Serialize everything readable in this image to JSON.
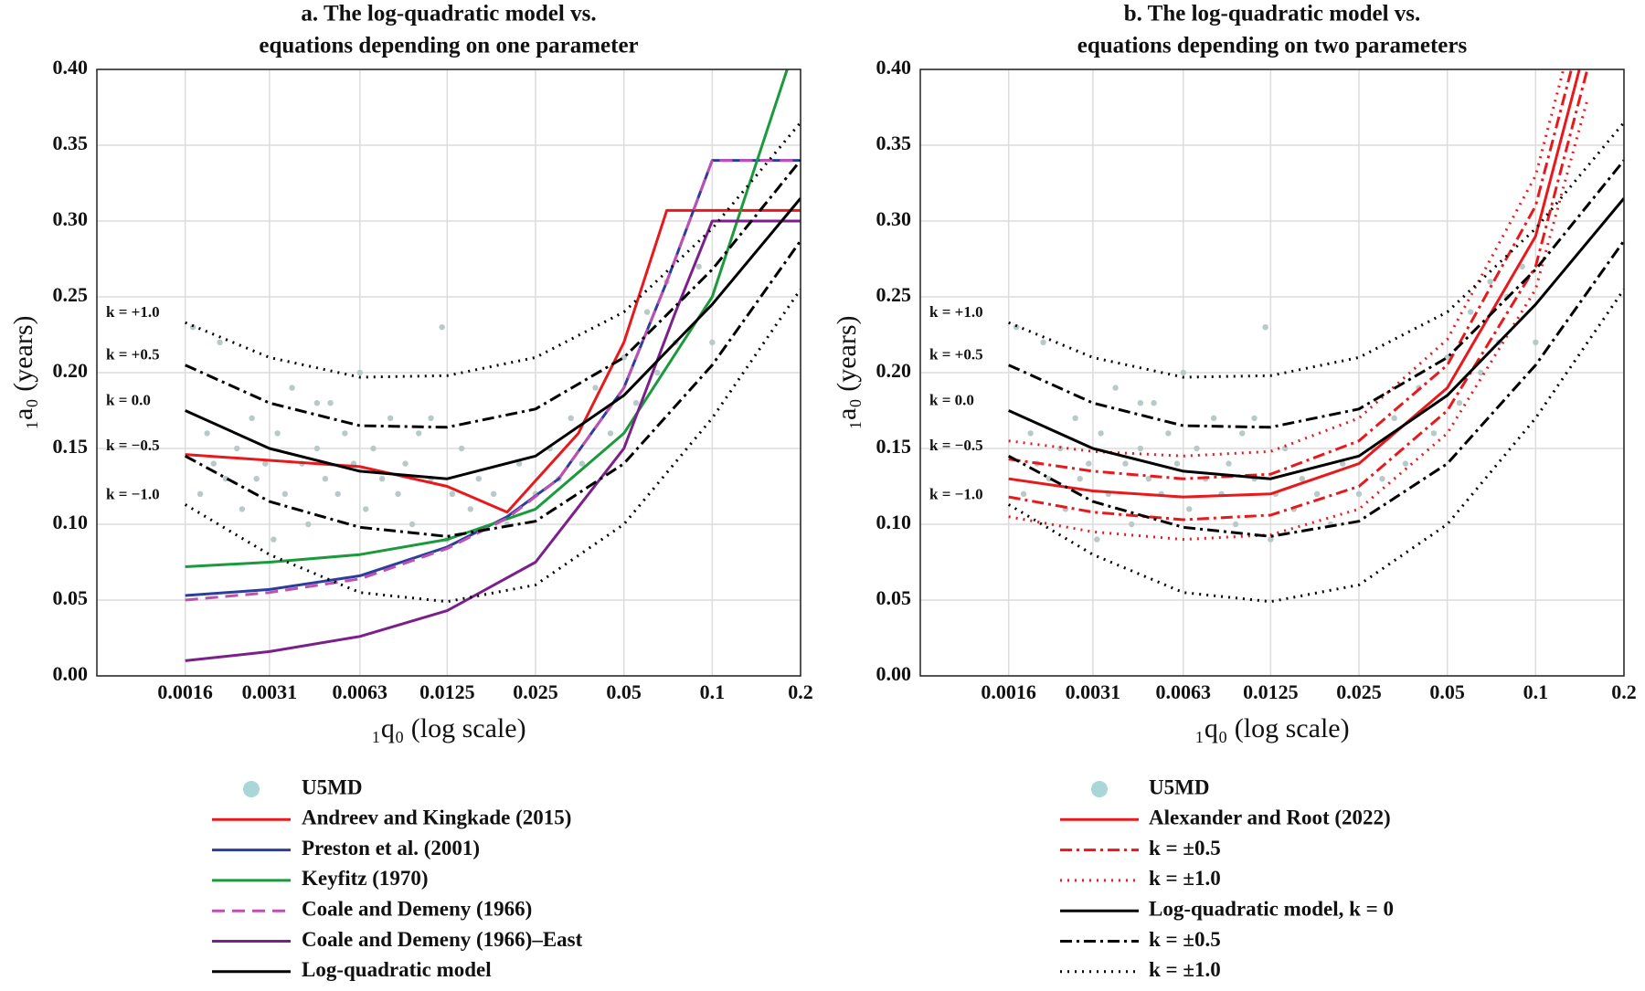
{
  "chart_data": [
    {
      "type": "line",
      "title": [
        "a. The log-quadratic model vs.",
        "equations depending on one parameter"
      ],
      "xlabel": "₁q₀ (log scale)",
      "ylabel": "₁a₀ (years)",
      "xlog": true,
      "xlim": [
        0.0008,
        0.2
      ],
      "ylim": [
        0,
        0.4
      ],
      "xticks": [
        0.0016,
        0.0031,
        0.0063,
        0.0125,
        0.025,
        0.05,
        0.1,
        0.2
      ],
      "yticks": [
        {
          "value": 0,
          "label": "0.00"
        },
        {
          "value": 0.05,
          "label": "0.05"
        },
        {
          "value": 0.1,
          "label": "0.10"
        },
        {
          "value": 0.15,
          "label": "0.15"
        },
        {
          "value": 0.2,
          "label": "0.20"
        },
        {
          "value": 0.25,
          "label": "0.25"
        },
        {
          "value": 0.3,
          "label": "0.30"
        },
        {
          "value": 0.35,
          "label": "0.35"
        },
        {
          "value": 0.4,
          "label": "0.40"
        }
      ],
      "grid": true,
      "scatter": {
        "name": "U5MD",
        "color": "#b7c9c9",
        "legend_color": "#a9d6d6",
        "x": [
          0.0017,
          0.0018,
          0.0019,
          0.002,
          0.0021,
          0.0022,
          0.0024,
          0.0025,
          0.0027,
          0.0028,
          0.003,
          0.0032,
          0.0033,
          0.0035,
          0.0037,
          0.004,
          0.0042,
          0.0045,
          0.0048,
          0.005,
          0.0053,
          0.0056,
          0.006,
          0.0063,
          0.0066,
          0.007,
          0.0075,
          0.008,
          0.0085,
          0.009,
          0.0095,
          0.01,
          0.011,
          0.012,
          0.0125,
          0.013,
          0.014,
          0.015,
          0.016,
          0.018,
          0.02,
          0.022,
          0.025,
          0.028,
          0.03,
          0.033,
          0.036,
          0.04,
          0.045,
          0.05,
          0.055,
          0.06,
          0.065,
          0.07,
          0.075,
          0.08,
          0.09,
          0.1,
          0.011,
          0.0045
        ],
        "values": [
          0.23,
          0.12,
          0.16,
          0.14,
          0.22,
          0.13,
          0.15,
          0.11,
          0.17,
          0.13,
          0.14,
          0.09,
          0.16,
          0.12,
          0.19,
          0.14,
          0.1,
          0.15,
          0.13,
          0.18,
          0.12,
          0.16,
          0.14,
          0.2,
          0.11,
          0.15,
          0.13,
          0.17,
          0.12,
          0.14,
          0.1,
          0.16,
          0.13,
          0.23,
          0.09,
          0.12,
          0.15,
          0.11,
          0.13,
          0.12,
          0.1,
          0.14,
          0.12,
          0.15,
          0.13,
          0.17,
          0.14,
          0.19,
          0.16,
          0.21,
          0.18,
          0.24,
          0.2,
          0.26,
          0.22,
          0.25,
          0.27,
          0.22,
          0.17,
          0.18
        ]
      },
      "series": [
        {
          "name": "Andreev and Kingkade (2015)",
          "color": "#e8191d",
          "style": "solid",
          "x": [
            0.0016,
            0.0063,
            0.0125,
            0.02,
            0.035,
            0.05,
            0.07,
            0.2
          ],
          "values": [
            0.146,
            0.138,
            0.125,
            0.108,
            0.16,
            0.22,
            0.307,
            0.307
          ]
        },
        {
          "name": "Preston et al. (2001)",
          "color": "#2b3e9c",
          "style": "solid",
          "x": [
            0.0016,
            0.0031,
            0.0063,
            0.0125,
            0.02,
            0.03,
            0.05,
            0.07,
            0.1,
            0.2
          ],
          "values": [
            0.053,
            0.057,
            0.066,
            0.085,
            0.105,
            0.13,
            0.19,
            0.26,
            0.34,
            0.34
          ]
        },
        {
          "name": "Keyfitz (1970)",
          "color": "#1a9a3c",
          "style": "solid",
          "x": [
            0.0016,
            0.0031,
            0.0063,
            0.0125,
            0.025,
            0.05,
            0.1,
            0.18
          ],
          "values": [
            0.072,
            0.075,
            0.08,
            0.09,
            0.11,
            0.16,
            0.25,
            0.4
          ]
        },
        {
          "name": "Coale and Demeny (1966)",
          "color": "#c04fb0",
          "style": "dashed",
          "x": [
            0.0016,
            0.0031,
            0.0063,
            0.0125,
            0.02,
            0.03,
            0.05,
            0.07,
            0.1,
            0.2
          ],
          "values": [
            0.05,
            0.055,
            0.064,
            0.084,
            0.104,
            0.13,
            0.19,
            0.26,
            0.34,
            0.34
          ]
        },
        {
          "name": "Coale and Demeny (1966)–East",
          "color": "#7b1f8a",
          "style": "solid",
          "x": [
            0.0016,
            0.0031,
            0.0063,
            0.0125,
            0.025,
            0.05,
            0.075,
            0.1,
            0.2
          ],
          "values": [
            0.01,
            0.016,
            0.026,
            0.043,
            0.075,
            0.15,
            0.24,
            0.3,
            0.3
          ]
        },
        {
          "label": "k = +1.0",
          "color": "#000000",
          "style": "dotted",
          "x": [
            0.0016,
            0.0031,
            0.0063,
            0.0125,
            0.025,
            0.05,
            0.1,
            0.2
          ],
          "values": [
            0.233,
            0.21,
            0.197,
            0.198,
            0.21,
            0.24,
            0.295,
            0.365
          ]
        },
        {
          "label": "k = +0.5",
          "color": "#000000",
          "style": "dashdot",
          "x": [
            0.0016,
            0.0031,
            0.0063,
            0.0125,
            0.025,
            0.05,
            0.1,
            0.2
          ],
          "values": [
            0.205,
            0.18,
            0.165,
            0.164,
            0.176,
            0.21,
            0.268,
            0.34
          ]
        },
        {
          "name": "Log-quadratic model",
          "label": "k = 0.0",
          "color": "#000000",
          "style": "solid",
          "x": [
            0.0016,
            0.0031,
            0.0063,
            0.0125,
            0.025,
            0.05,
            0.1,
            0.2
          ],
          "values": [
            0.175,
            0.15,
            0.135,
            0.13,
            0.145,
            0.185,
            0.245,
            0.315
          ]
        },
        {
          "label": "k = −0.5",
          "color": "#000000",
          "style": "dashdot",
          "x": [
            0.0016,
            0.0031,
            0.0063,
            0.0125,
            0.025,
            0.05,
            0.1,
            0.2
          ],
          "values": [
            0.145,
            0.115,
            0.098,
            0.092,
            0.102,
            0.14,
            0.205,
            0.287
          ]
        },
        {
          "label": "k = −1.0",
          "color": "#000000",
          "style": "dotted",
          "x": [
            0.0016,
            0.0031,
            0.0063,
            0.0125,
            0.025,
            0.05,
            0.1,
            0.2
          ],
          "values": [
            0.113,
            0.08,
            0.055,
            0.049,
            0.06,
            0.1,
            0.17,
            0.255
          ]
        }
      ]
    },
    {
      "type": "line",
      "title": [
        "b. The log-quadratic model vs.",
        "equations depending on two parameters"
      ],
      "xlabel": "₁q₀ (log scale)",
      "ylabel": "₁a₀ (years)",
      "xlog": true,
      "xlim": [
        0.0008,
        0.2
      ],
      "ylim": [
        0,
        0.4
      ],
      "xticks": [
        0.0016,
        0.0031,
        0.0063,
        0.0125,
        0.025,
        0.05,
        0.1,
        0.2
      ],
      "yticks": [
        {
          "value": 0,
          "label": "0.00"
        },
        {
          "value": 0.05,
          "label": "0.05"
        },
        {
          "value": 0.1,
          "label": "0.10"
        },
        {
          "value": 0.15,
          "label": "0.15"
        },
        {
          "value": 0.2,
          "label": "0.20"
        },
        {
          "value": 0.25,
          "label": "0.25"
        },
        {
          "value": 0.3,
          "label": "0.30"
        },
        {
          "value": 0.35,
          "label": "0.35"
        },
        {
          "value": 0.4,
          "label": "0.40"
        }
      ],
      "grid": true,
      "scatter": {
        "name": "U5MD",
        "color": "#b7c9c9",
        "legend_color": "#a9d6d6",
        "x": [
          0.0017,
          0.0018,
          0.0019,
          0.002,
          0.0021,
          0.0022,
          0.0024,
          0.0025,
          0.0027,
          0.0028,
          0.003,
          0.0032,
          0.0033,
          0.0035,
          0.0037,
          0.004,
          0.0042,
          0.0045,
          0.0048,
          0.005,
          0.0053,
          0.0056,
          0.006,
          0.0063,
          0.0066,
          0.007,
          0.0075,
          0.008,
          0.0085,
          0.009,
          0.0095,
          0.01,
          0.011,
          0.012,
          0.0125,
          0.013,
          0.014,
          0.015,
          0.016,
          0.018,
          0.02,
          0.022,
          0.025,
          0.028,
          0.03,
          0.033,
          0.036,
          0.04,
          0.045,
          0.05,
          0.055,
          0.06,
          0.065,
          0.07,
          0.075,
          0.08,
          0.09,
          0.1,
          0.011,
          0.0045
        ],
        "values": [
          0.23,
          0.12,
          0.16,
          0.14,
          0.22,
          0.13,
          0.15,
          0.11,
          0.17,
          0.13,
          0.14,
          0.09,
          0.16,
          0.12,
          0.19,
          0.14,
          0.1,
          0.15,
          0.13,
          0.18,
          0.12,
          0.16,
          0.14,
          0.2,
          0.11,
          0.15,
          0.13,
          0.17,
          0.12,
          0.14,
          0.1,
          0.16,
          0.13,
          0.23,
          0.09,
          0.12,
          0.15,
          0.11,
          0.13,
          0.12,
          0.1,
          0.14,
          0.12,
          0.15,
          0.13,
          0.17,
          0.14,
          0.19,
          0.16,
          0.21,
          0.18,
          0.24,
          0.2,
          0.26,
          0.22,
          0.25,
          0.27,
          0.22,
          0.17,
          0.18
        ]
      },
      "series": [
        {
          "name": "Alexander and Root (2022)",
          "color": "#e8191d",
          "style": "solid",
          "x": [
            0.0016,
            0.0031,
            0.0063,
            0.0125,
            0.025,
            0.05,
            0.1,
            0.15
          ],
          "values": [
            0.13,
            0.122,
            0.118,
            0.12,
            0.14,
            0.19,
            0.29,
            0.42
          ]
        },
        {
          "name": "k = ±0.5",
          "color": "#e8191d",
          "style": "dashdot",
          "x": [
            0.0016,
            0.0031,
            0.0063,
            0.0125,
            0.025,
            0.05,
            0.1,
            0.15
          ],
          "values": [
            0.143,
            0.135,
            0.13,
            0.133,
            0.155,
            0.205,
            0.31,
            0.44
          ]
        },
        {
          "color": "#e8191d",
          "style": "dashdot",
          "x": [
            0.0016,
            0.0031,
            0.0063,
            0.0125,
            0.025,
            0.05,
            0.1,
            0.15
          ],
          "values": [
            0.118,
            0.108,
            0.103,
            0.106,
            0.125,
            0.175,
            0.27,
            0.4
          ]
        },
        {
          "name": "k = ±1.0",
          "color": "#e8191d",
          "style": "dotted",
          "x": [
            0.0016,
            0.0031,
            0.0063,
            0.0125,
            0.025,
            0.05,
            0.1,
            0.15
          ],
          "values": [
            0.155,
            0.148,
            0.145,
            0.148,
            0.17,
            0.222,
            0.33,
            0.46
          ]
        },
        {
          "color": "#e8191d",
          "style": "dotted",
          "x": [
            0.0016,
            0.0031,
            0.0063,
            0.0125,
            0.025,
            0.05,
            0.1,
            0.15
          ],
          "values": [
            0.105,
            0.095,
            0.09,
            0.093,
            0.11,
            0.16,
            0.255,
            0.38
          ]
        },
        {
          "name": "Log-quadratic model, k = 0",
          "label": "k = 0.0",
          "color": "#000000",
          "style": "solid",
          "x": [
            0.0016,
            0.0031,
            0.0063,
            0.0125,
            0.025,
            0.05,
            0.1,
            0.2
          ],
          "values": [
            0.175,
            0.15,
            0.135,
            0.13,
            0.145,
            0.185,
            0.245,
            0.315
          ]
        },
        {
          "name": "k = ±0.5",
          "label": "k = +0.5",
          "color": "#000000",
          "style": "dashdot",
          "x": [
            0.0016,
            0.0031,
            0.0063,
            0.0125,
            0.025,
            0.05,
            0.1,
            0.2
          ],
          "values": [
            0.205,
            0.18,
            0.165,
            0.164,
            0.176,
            0.21,
            0.268,
            0.34
          ]
        },
        {
          "label": "k = −0.5",
          "color": "#000000",
          "style": "dashdot",
          "x": [
            0.0016,
            0.0031,
            0.0063,
            0.0125,
            0.025,
            0.05,
            0.1,
            0.2
          ],
          "values": [
            0.145,
            0.115,
            0.098,
            0.092,
            0.102,
            0.14,
            0.205,
            0.287
          ]
        },
        {
          "name": "k = ±1.0",
          "label": "k = +1.0",
          "color": "#000000",
          "style": "dotted",
          "x": [
            0.0016,
            0.0031,
            0.0063,
            0.0125,
            0.025,
            0.05,
            0.1,
            0.2
          ],
          "values": [
            0.233,
            0.21,
            0.197,
            0.198,
            0.21,
            0.24,
            0.295,
            0.365
          ]
        },
        {
          "label": "k = −1.0",
          "color": "#000000",
          "style": "dotted",
          "x": [
            0.0016,
            0.0031,
            0.0063,
            0.0125,
            0.025,
            0.05,
            0.1,
            0.2
          ],
          "values": [
            0.113,
            0.08,
            0.055,
            0.049,
            0.06,
            0.1,
            0.17,
            0.255
          ]
        }
      ]
    }
  ]
}
